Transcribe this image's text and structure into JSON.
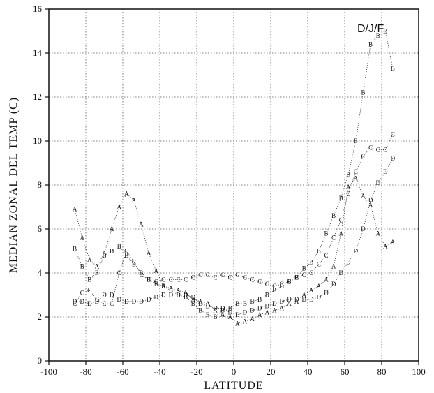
{
  "chart_data": {
    "type": "line",
    "title": "",
    "xlabel": "LATITUDE",
    "ylabel": "MEDIAN ZONAL DEL TEMP (C)",
    "annotation": "D/J/F",
    "xlim": [
      -100,
      100
    ],
    "ylim": [
      0,
      16
    ],
    "xticks": [
      -100,
      -80,
      -60,
      -40,
      -20,
      0,
      20,
      40,
      60,
      80,
      100
    ],
    "yticks": [
      0,
      2,
      4,
      6,
      8,
      10,
      12,
      14,
      16
    ],
    "grid": true,
    "x": [
      -86,
      -82,
      -78,
      -74,
      -70,
      -66,
      -62,
      -58,
      -54,
      -50,
      -46,
      -42,
      -38,
      -34,
      -30,
      -26,
      -22,
      -18,
      -14,
      -10,
      -6,
      -2,
      2,
      6,
      10,
      14,
      18,
      22,
      26,
      30,
      34,
      38,
      42,
      46,
      50,
      54,
      58,
      62,
      66,
      70,
      74,
      78,
      82,
      86
    ],
    "series": [
      {
        "name": "A",
        "values": [
          6.9,
          5.6,
          4.6,
          4.3,
          4.9,
          6.0,
          7.0,
          7.6,
          7.3,
          6.2,
          4.9,
          4.1,
          3.4,
          3.3,
          3.2,
          3.1,
          2.8,
          2.7,
          2.6,
          2.3,
          2.1,
          2.0,
          1.7,
          1.8,
          1.9,
          2.1,
          2.2,
          2.3,
          2.4,
          2.6,
          2.7,
          3.0,
          3.2,
          3.4,
          3.7,
          4.3,
          5.8,
          7.9,
          8.3,
          7.5,
          7.1,
          5.8,
          5.2,
          5.4
        ]
      },
      {
        "name": "B",
        "values": [
          5.1,
          4.3,
          3.7,
          4.0,
          4.8,
          5.0,
          5.2,
          4.8,
          4.4,
          4.0,
          3.7,
          3.5,
          3.4,
          3.2,
          3.0,
          2.9,
          2.6,
          2.3,
          2.1,
          2.0,
          2.3,
          2.4,
          2.6,
          2.6,
          2.7,
          2.8,
          3.0,
          3.2,
          3.4,
          3.6,
          3.8,
          4.2,
          4.5,
          5.0,
          5.8,
          6.6,
          7.4,
          8.5,
          10.0,
          12.2,
          14.4,
          14.8,
          15.0,
          13.3
        ]
      },
      {
        "name": "C",
        "values": [
          2.6,
          3.1,
          3.2,
          2.8,
          2.6,
          2.6,
          4.0,
          5.0,
          4.5,
          3.9,
          3.7,
          3.6,
          3.7,
          3.7,
          3.7,
          3.7,
          3.8,
          3.9,
          3.9,
          3.8,
          3.9,
          3.8,
          3.9,
          3.8,
          3.7,
          3.6,
          3.5,
          3.4,
          3.5,
          3.6,
          3.8,
          3.9,
          4.0,
          4.4,
          4.8,
          5.6,
          6.4,
          7.6,
          8.6,
          9.3,
          9.7,
          9.6,
          9.6,
          10.3
        ]
      },
      {
        "name": "D",
        "values": [
          2.7,
          2.7,
          2.6,
          2.7,
          3.0,
          3.0,
          2.8,
          2.7,
          2.7,
          2.7,
          2.8,
          2.9,
          3.0,
          3.0,
          3.0,
          3.0,
          2.9,
          2.6,
          2.5,
          2.4,
          2.4,
          2.2,
          2.1,
          2.2,
          2.3,
          2.4,
          2.5,
          2.6,
          2.7,
          2.8,
          2.8,
          2.8,
          2.8,
          2.9,
          3.1,
          3.5,
          4.0,
          4.5,
          5.0,
          6.0,
          7.3,
          8.1,
          8.6,
          9.2
        ]
      }
    ]
  }
}
